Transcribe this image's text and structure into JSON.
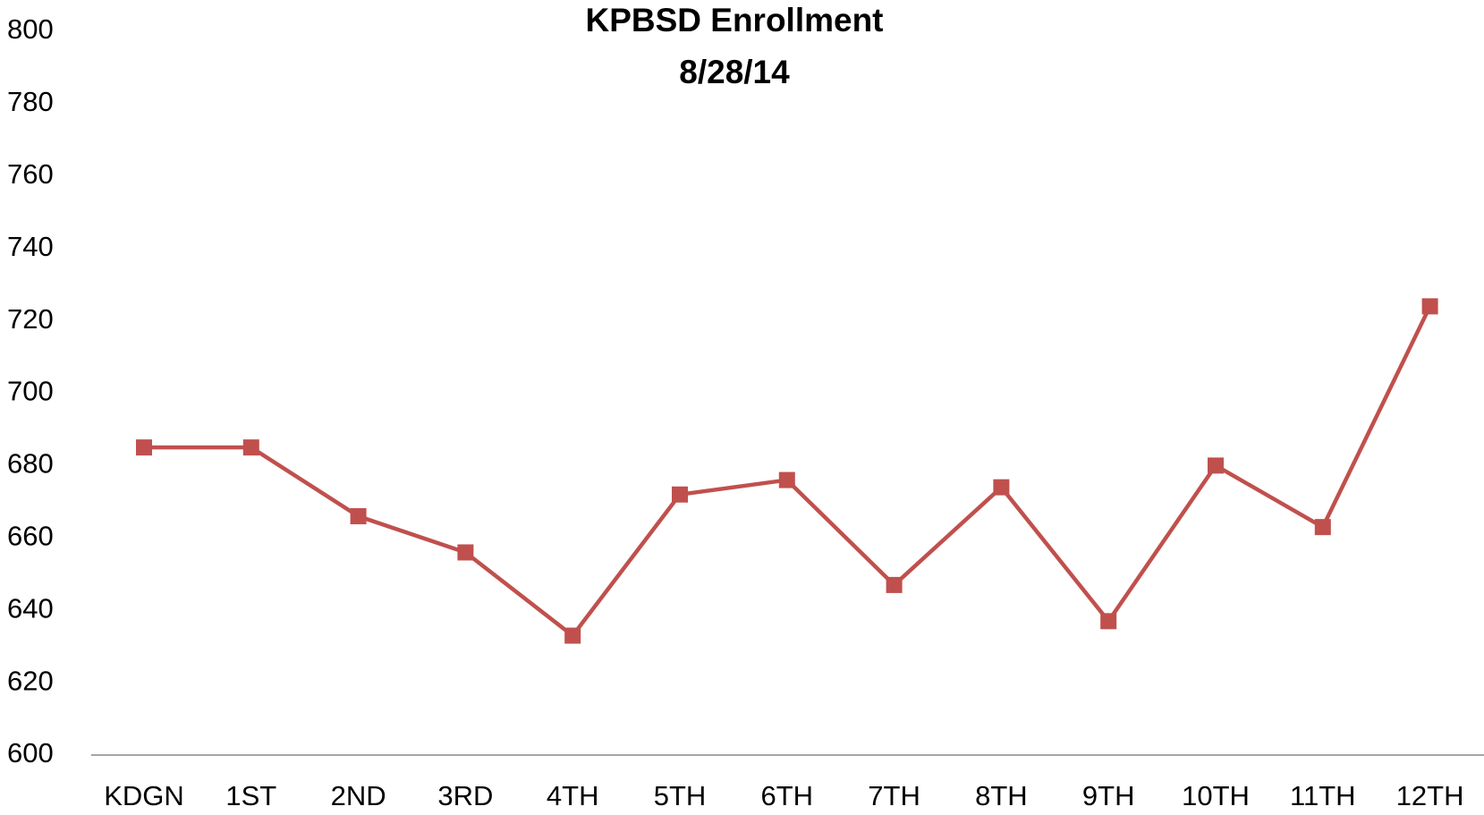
{
  "chart_data": {
    "type": "line",
    "title": "KPBSD Enrollment",
    "subtitle": "8/28/14",
    "categories": [
      "KDGN",
      "1ST",
      "2ND",
      "3RD",
      "4TH",
      "5TH",
      "6TH",
      "7TH",
      "8TH",
      "9TH",
      "10TH",
      "11TH",
      "12TH"
    ],
    "series": [
      {
        "name": "Enrollment",
        "color": "#c0504d",
        "values": [
          685,
          685,
          666,
          656,
          633,
          672,
          676,
          647,
          674,
          637,
          680,
          663,
          724
        ]
      }
    ],
    "ylim": [
      600,
      800
    ],
    "yticks": [
      600,
      620,
      640,
      660,
      680,
      700,
      720,
      740,
      760,
      780,
      800
    ],
    "grid": false,
    "legend": false
  }
}
